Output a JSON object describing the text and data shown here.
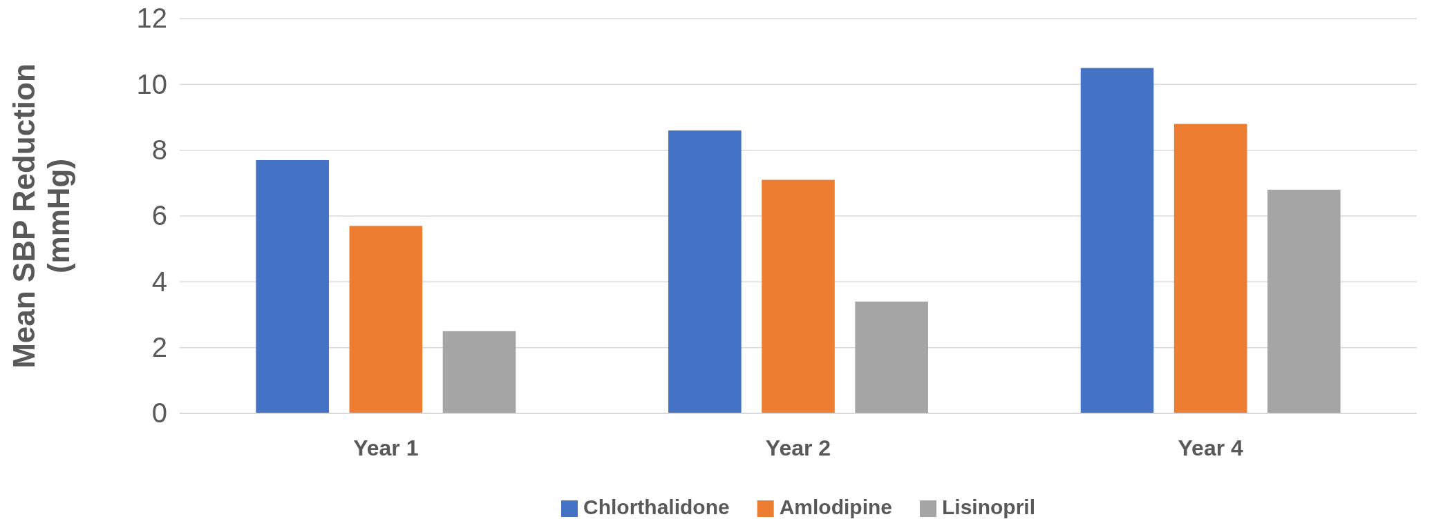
{
  "chart_data": {
    "type": "bar",
    "ylabel": "Mean SBP Reduction (mmHg)",
    "categories": [
      "Year 1",
      "Year 2",
      "Year 4"
    ],
    "series": [
      {
        "name": "Chlorthalidone",
        "color": "#4472c4",
        "values": [
          7.7,
          8.6,
          10.5
        ]
      },
      {
        "name": "Amlodipine",
        "color": "#ed7d31",
        "values": [
          5.7,
          7.1,
          8.8
        ]
      },
      {
        "name": "Lisinopril",
        "color": "#a5a5a5",
        "values": [
          2.5,
          3.4,
          6.8
        ]
      }
    ],
    "ylim": [
      0,
      12
    ],
    "yticks": [
      0,
      2,
      4,
      6,
      8,
      10,
      12
    ],
    "grid": "y",
    "legend": "bottom"
  }
}
